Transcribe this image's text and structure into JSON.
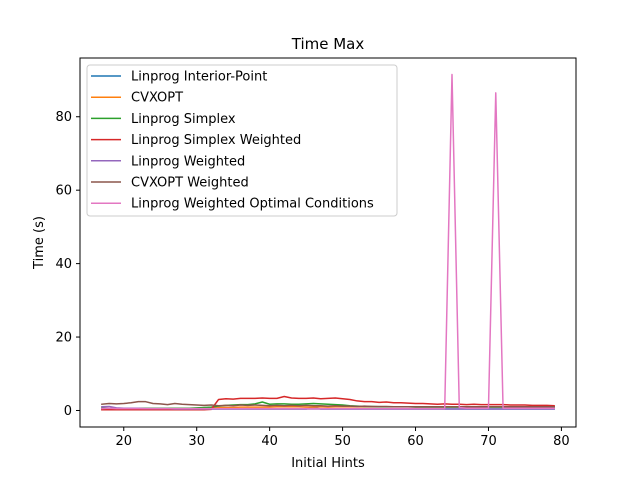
{
  "chart_data": {
    "type": "line",
    "title": "Time Max",
    "xlabel": "Initial Hints",
    "ylabel": "Time (s)",
    "xlim": [
      14,
      82
    ],
    "ylim": [
      -4.5,
      96
    ],
    "xticks": [
      20,
      30,
      40,
      50,
      60,
      70,
      80
    ],
    "yticks": [
      0,
      20,
      40,
      60,
      80
    ],
    "grid": false,
    "legend_position": "upper-left",
    "x": [
      17,
      18,
      19,
      20,
      21,
      22,
      23,
      24,
      25,
      26,
      27,
      28,
      29,
      30,
      31,
      32,
      33,
      34,
      35,
      36,
      37,
      38,
      39,
      40,
      41,
      42,
      43,
      44,
      45,
      46,
      47,
      48,
      49,
      50,
      51,
      52,
      53,
      54,
      55,
      56,
      57,
      58,
      59,
      60,
      61,
      62,
      63,
      64,
      65,
      66,
      67,
      68,
      69,
      70,
      71,
      72,
      73,
      74,
      75,
      76,
      77,
      78,
      79
    ],
    "series": [
      {
        "name": "Linprog Interior-Point",
        "color": "#1f77b4",
        "values": [
          0.3,
          0.3,
          0.3,
          0.3,
          0.3,
          0.3,
          0.3,
          0.3,
          0.3,
          0.3,
          0.3,
          0.3,
          0.3,
          0.3,
          0.3,
          0.4,
          0.4,
          0.4,
          0.4,
          0.4,
          0.4,
          0.4,
          0.4,
          0.4,
          0.4,
          0.4,
          0.4,
          0.4,
          0.4,
          0.8,
          0.4,
          0.4,
          0.4,
          0.4,
          0.4,
          0.4,
          0.4,
          0.4,
          0.4,
          0.4,
          0.4,
          0.4,
          0.4,
          0.4,
          0.4,
          0.4,
          0.4,
          0.4,
          0.4,
          0.4,
          0.4,
          0.4,
          0.4,
          0.4,
          0.4,
          0.4,
          0.4,
          0.4,
          0.4,
          0.4,
          0.4,
          0.4,
          0.4
        ]
      },
      {
        "name": "CVXOPT",
        "color": "#ff7f0e",
        "values": [
          0.5,
          0.5,
          0.5,
          0.6,
          0.5,
          0.5,
          0.6,
          0.5,
          0.6,
          0.6,
          0.6,
          0.6,
          0.6,
          0.6,
          0.7,
          0.7,
          0.8,
          0.8,
          0.8,
          0.9,
          0.9,
          0.9,
          0.9,
          0.9,
          1.0,
          1.0,
          1.0,
          1.0,
          0.9,
          0.9,
          1.0,
          0.9,
          1.0,
          1.0,
          1.0,
          1.0,
          1.0,
          1.0,
          1.0,
          1.0,
          1.0,
          1.0,
          1.0,
          1.0,
          1.0,
          1.0,
          1.0,
          1.0,
          1.0,
          1.0,
          1.0,
          1.0,
          1.0,
          1.0,
          1.0,
          1.0,
          1.0,
          1.0,
          1.0,
          1.0,
          1.0,
          1.0,
          1.0
        ]
      },
      {
        "name": "Linprog Simplex",
        "color": "#2ca02c",
        "values": [
          0.6,
          0.6,
          0.5,
          0.6,
          0.6,
          0.6,
          0.6,
          0.6,
          0.6,
          0.6,
          0.6,
          0.6,
          0.6,
          0.7,
          0.8,
          0.9,
          1.2,
          1.4,
          1.5,
          1.6,
          1.6,
          1.8,
          2.3,
          1.7,
          1.8,
          1.8,
          1.7,
          1.7,
          1.8,
          1.9,
          1.8,
          1.7,
          1.6,
          1.5,
          1.3,
          1.2,
          1.1,
          1.1,
          1.0,
          1.0,
          1.0,
          1.0,
          1.0,
          0.9,
          0.9,
          0.9,
          0.9,
          0.9,
          0.9,
          0.9,
          0.9,
          0.9,
          0.9,
          0.9,
          0.9,
          0.9,
          0.9,
          0.9,
          0.9,
          0.9,
          0.9,
          0.9,
          0.9
        ]
      },
      {
        "name": "Linprog Simplex Weighted",
        "color": "#d62728",
        "values": [
          0.2,
          0.2,
          0.2,
          0.2,
          0.2,
          0.2,
          0.2,
          0.2,
          0.2,
          0.2,
          0.2,
          0.2,
          0.2,
          0.2,
          0.2,
          0.3,
          3.0,
          3.2,
          3.1,
          3.3,
          3.3,
          3.3,
          3.4,
          3.3,
          3.3,
          3.8,
          3.4,
          3.3,
          3.3,
          3.4,
          3.2,
          3.3,
          3.4,
          3.2,
          3.0,
          2.6,
          2.4,
          2.4,
          2.2,
          2.3,
          2.1,
          2.1,
          2.0,
          1.9,
          1.9,
          1.8,
          1.7,
          1.8,
          1.7,
          1.7,
          1.6,
          1.7,
          1.6,
          1.6,
          1.6,
          1.6,
          1.5,
          1.5,
          1.5,
          1.4,
          1.4,
          1.4,
          1.3
        ]
      },
      {
        "name": "Linprog Weighted",
        "color": "#9467bd",
        "values": [
          1.0,
          1.1,
          0.7,
          0.6,
          0.6,
          0.6,
          0.5,
          0.5,
          0.5,
          0.5,
          0.4,
          0.4,
          0.4,
          0.4,
          0.4,
          0.4,
          0.4,
          0.4,
          0.4,
          0.4,
          0.4,
          0.4,
          0.4,
          0.4,
          0.4,
          0.4,
          0.4,
          0.4,
          0.4,
          0.4,
          0.4,
          0.4,
          0.4,
          0.4,
          0.4,
          0.4,
          0.4,
          0.4,
          0.4,
          0.4,
          0.4,
          0.4,
          0.4,
          0.4,
          0.4,
          0.4,
          0.4,
          0.4,
          0.4,
          0.4,
          0.4,
          0.4,
          0.4,
          0.4,
          0.4,
          0.4,
          0.4,
          0.4,
          0.4,
          0.4,
          0.4,
          0.4,
          0.4
        ]
      },
      {
        "name": "CVXOPT Weighted",
        "color": "#8c564b",
        "values": [
          1.7,
          1.9,
          1.8,
          1.9,
          2.1,
          2.4,
          2.4,
          1.9,
          1.8,
          1.6,
          1.9,
          1.7,
          1.6,
          1.5,
          1.4,
          1.5,
          1.3,
          1.4,
          1.3,
          1.5,
          1.4,
          1.5,
          1.4,
          1.3,
          1.4,
          1.3,
          1.4,
          1.3,
          1.4,
          1.3,
          1.3,
          1.2,
          1.3,
          1.2,
          1.2,
          1.1,
          1.2,
          1.1,
          1.1,
          1.1,
          1.0,
          1.0,
          1.0,
          1.0,
          1.0,
          1.0,
          1.0,
          1.0,
          1.0,
          1.0,
          1.0,
          1.0,
          1.0,
          1.0,
          1.0,
          1.0,
          1.0,
          1.0,
          1.0,
          1.0,
          1.0,
          1.0,
          1.0
        ]
      },
      {
        "name": "Linprog Weighted Optimal Conditions",
        "color": "#e377c2",
        "values": [
          0.5,
          0.6,
          0.5,
          0.5,
          0.5,
          0.5,
          0.5,
          0.5,
          0.5,
          0.5,
          0.5,
          0.5,
          0.5,
          0.5,
          0.5,
          0.5,
          0.5,
          0.5,
          0.5,
          0.5,
          0.5,
          0.5,
          0.5,
          0.5,
          0.5,
          0.5,
          0.5,
          0.5,
          0.5,
          0.5,
          0.5,
          0.5,
          0.5,
          0.5,
          0.5,
          0.5,
          0.5,
          0.5,
          0.5,
          0.5,
          0.5,
          0.5,
          0.5,
          0.5,
          0.5,
          0.5,
          0.5,
          0.5,
          91.5,
          0.8,
          0.6,
          0.6,
          0.6,
          0.6,
          86.5,
          0.6,
          0.6,
          0.6,
          0.6,
          0.6,
          0.6,
          0.6,
          0.6
        ]
      }
    ]
  }
}
